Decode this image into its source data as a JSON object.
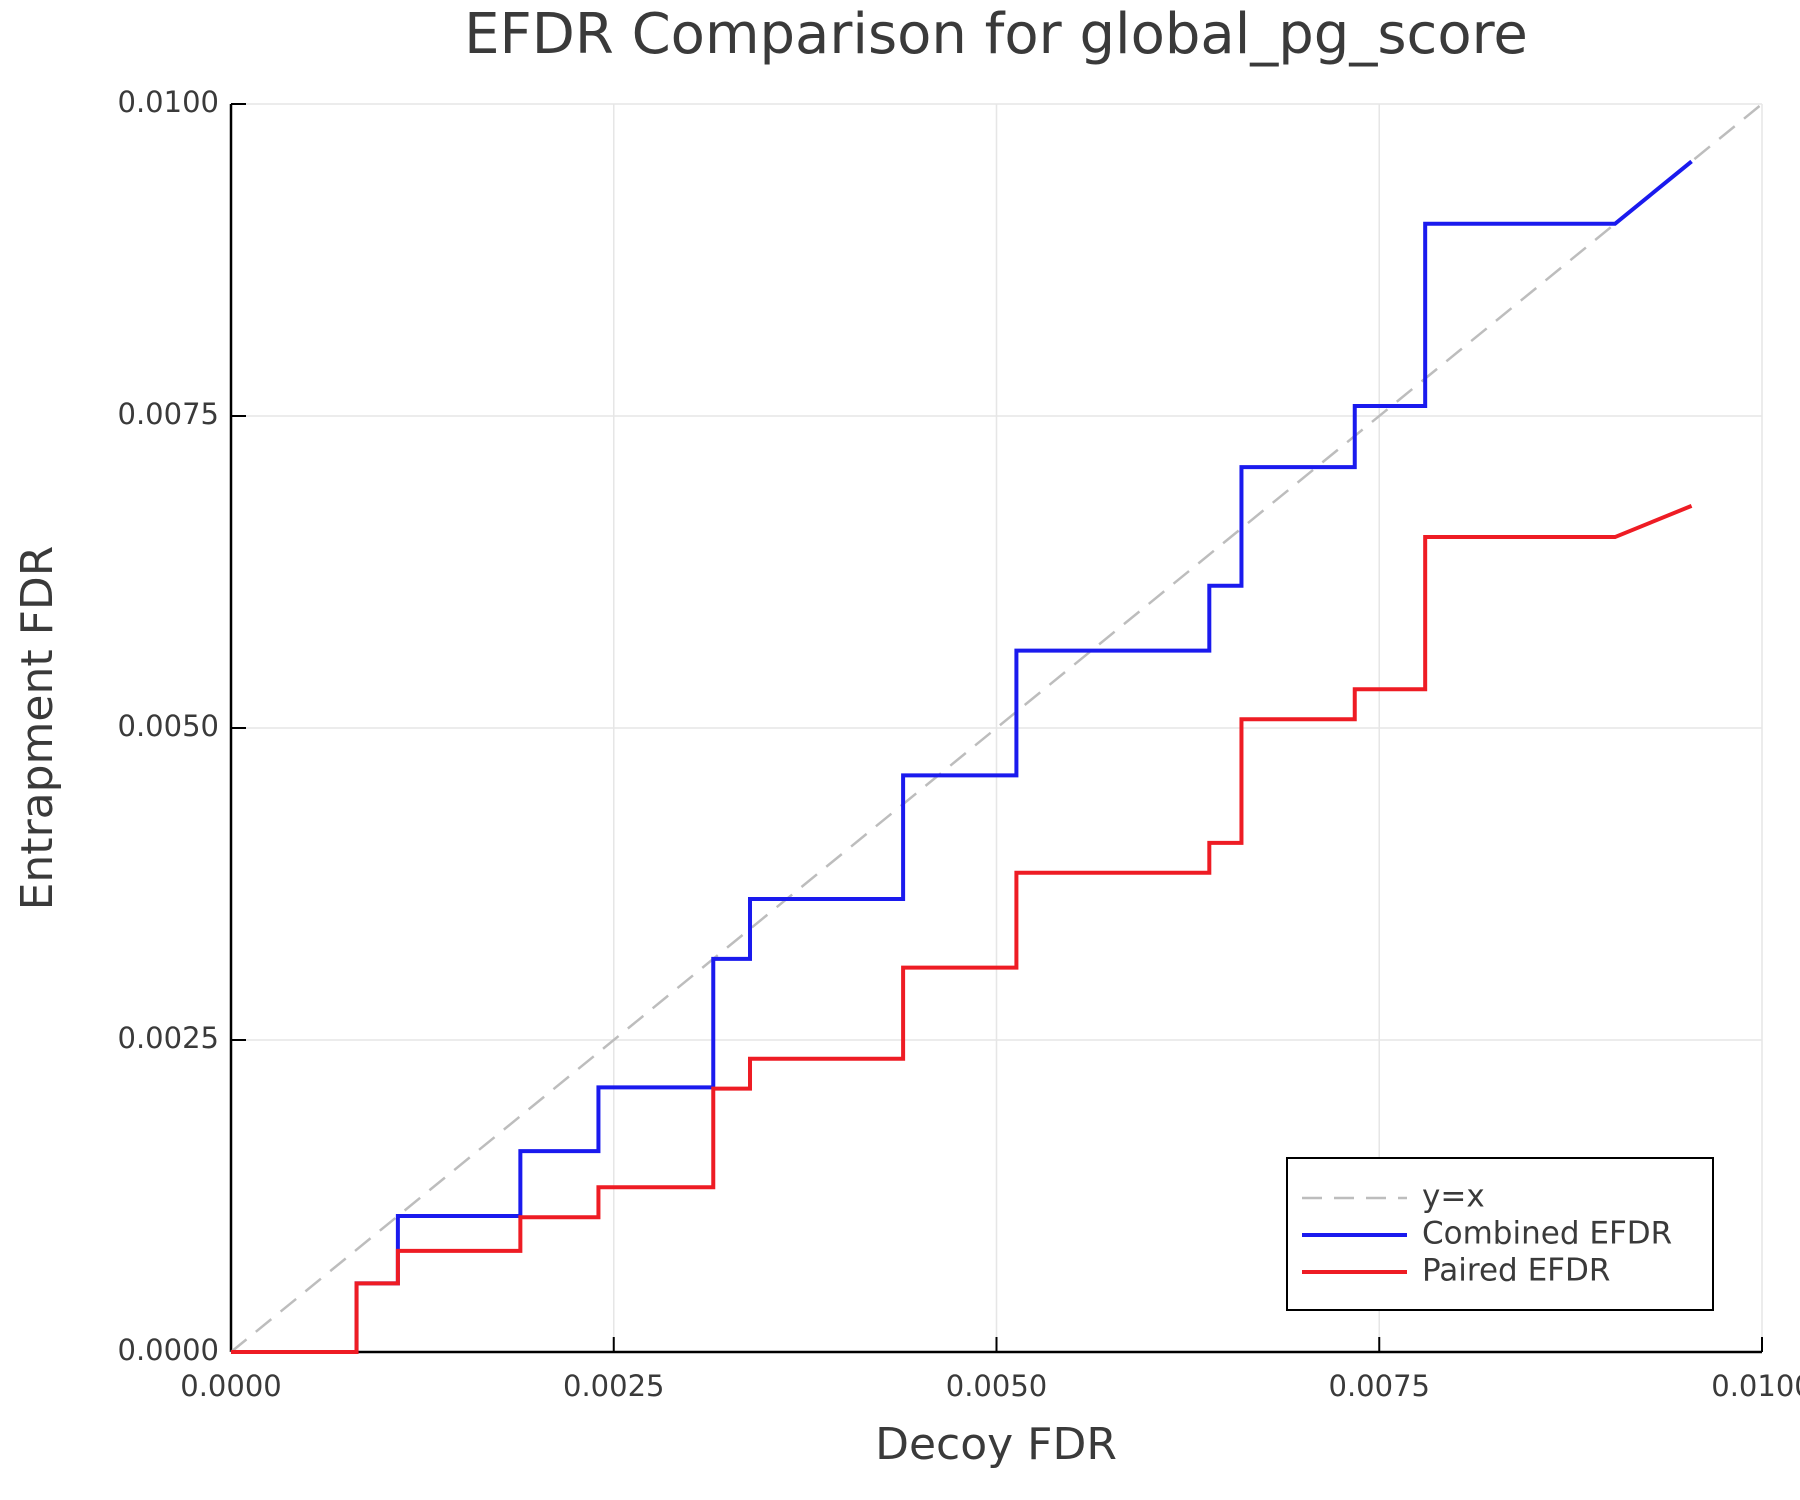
{
  "chart_data": {
    "type": "line",
    "title": "EFDR Comparison for global_pg_score",
    "x_label": "Decoy FDR",
    "y_label": "Entrapment FDR",
    "xlim": [
      0,
      0.01
    ],
    "ylim": [
      0,
      0.01
    ],
    "xticks": [
      {
        "value": 0,
        "label": "0.0000"
      },
      {
        "value": 0.0025,
        "label": "0.0025"
      },
      {
        "value": 0.005,
        "label": "0.0050"
      },
      {
        "value": 0.0075,
        "label": "0.0075"
      },
      {
        "value": 0.01,
        "label": "0.0100"
      }
    ],
    "yticks": [
      {
        "value": 0,
        "label": "0.0000"
      },
      {
        "value": 0.0025,
        "label": "0.0025"
      },
      {
        "value": 0.005,
        "label": "0.0050"
      },
      {
        "value": 0.0075,
        "label": "0.0075"
      },
      {
        "value": 0.01,
        "label": "0.0100"
      }
    ],
    "grid": true,
    "legend": "lower right",
    "series": [
      {
        "name": "y=x",
        "color": "#bdbdbd",
        "dash": true,
        "x": [
          0,
          0.01
        ],
        "values": [
          0,
          0.01
        ]
      },
      {
        "name": "Combined EFDR",
        "color": "#1a1aee",
        "x": [
          0,
          0.00082,
          0.00082,
          0.00109,
          0.00109,
          0.00189,
          0.00189,
          0.0024,
          0.0024,
          0.00315,
          0.00315,
          0.00339,
          0.00339,
          0.00439,
          0.00439,
          0.00513,
          0.00513,
          0.00639,
          0.00639,
          0.0066,
          0.0066,
          0.00734,
          0.00734,
          0.0078,
          0.0078,
          0.00904,
          0.00954
        ],
        "values": [
          0,
          0,
          0.00055,
          0.00055,
          0.00109,
          0.00109,
          0.00161,
          0.00161,
          0.00212,
          0.00212,
          0.00315,
          0.00315,
          0.00363,
          0.00363,
          0.00462,
          0.00462,
          0.00562,
          0.00562,
          0.00614,
          0.00614,
          0.00709,
          0.00709,
          0.00758,
          0.00758,
          0.00904,
          0.00904,
          0.00954
        ]
      },
      {
        "name": "Paired EFDR",
        "color": "#ee1c24",
        "x": [
          0,
          0.00082,
          0.00082,
          0.00109,
          0.00109,
          0.00189,
          0.00189,
          0.0024,
          0.0024,
          0.00315,
          0.00315,
          0.00339,
          0.00339,
          0.00439,
          0.00439,
          0.00513,
          0.00513,
          0.00639,
          0.00639,
          0.0066,
          0.0066,
          0.00734,
          0.00734,
          0.0078,
          0.0078,
          0.00904,
          0.00954
        ],
        "values": [
          0,
          0,
          0.00055,
          0.00055,
          0.00081,
          0.00081,
          0.00108,
          0.00108,
          0.00132,
          0.00132,
          0.00211,
          0.00211,
          0.00235,
          0.00235,
          0.00308,
          0.00308,
          0.00384,
          0.00384,
          0.00408,
          0.00408,
          0.00507,
          0.00507,
          0.00531,
          0.00531,
          0.00653,
          0.00653,
          0.00678
        ]
      }
    ]
  }
}
